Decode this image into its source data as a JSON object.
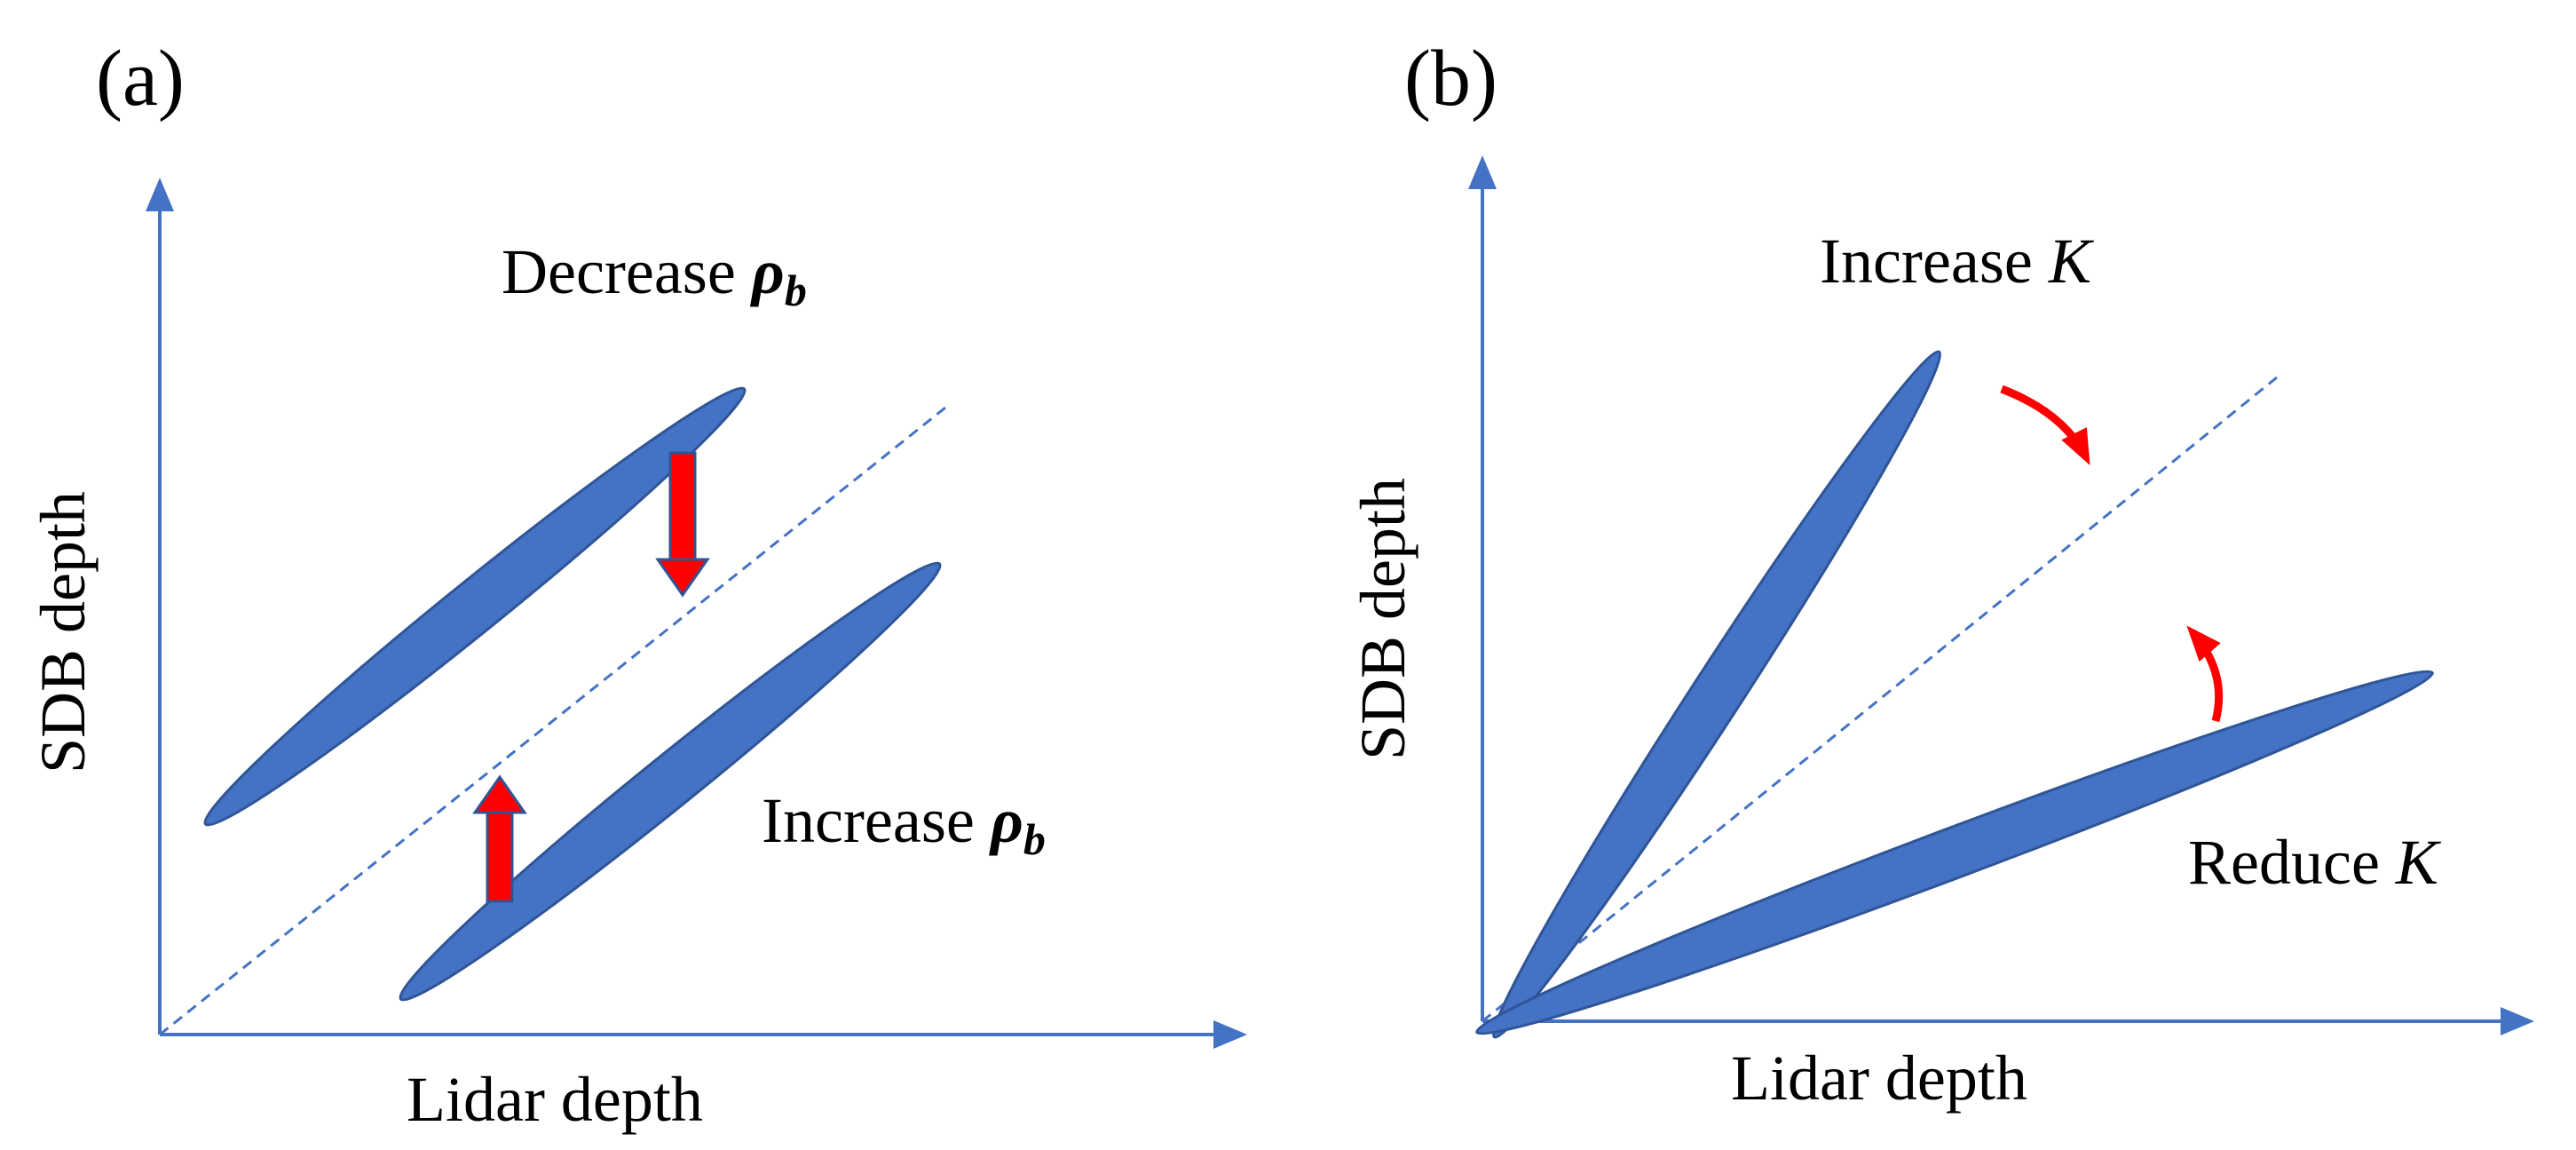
{
  "colors": {
    "ellipse_fill": "#4472c4",
    "ellipse_stroke": "#2f5597",
    "axis": "#4472c4",
    "dashed": "#4472c4",
    "arrow": "#ff0000",
    "background": "#ffffff"
  },
  "panel_a": {
    "label": "(a)",
    "x_axis_label": "Lidar depth",
    "y_axis_label": "SDB depth",
    "top_annotation": {
      "text": "Decrease ",
      "symbol": "ρ",
      "subscript": "b"
    },
    "bottom_annotation": {
      "text": "Increase ",
      "symbol": "ρ",
      "subscript": "b"
    }
  },
  "panel_b": {
    "label": "(b)",
    "x_axis_label": "Lidar depth",
    "y_axis_label": "SDB depth",
    "top_annotation": {
      "text": "Increase ",
      "symbol": "K"
    },
    "bottom_annotation": {
      "text": "Reduce ",
      "symbol": "K"
    }
  }
}
